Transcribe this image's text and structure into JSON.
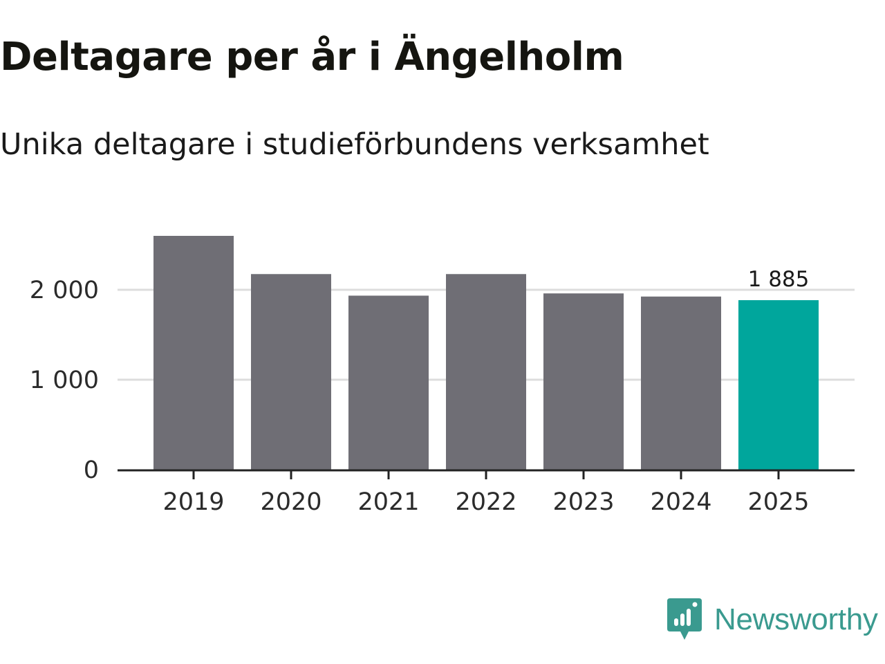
{
  "title": "Deltagare per år i Ängelholm",
  "subtitle": "Unika deltagare i studieförbundens verksamhet",
  "brand": {
    "name": "Newsworthy",
    "icon": "newsworthy-logo-icon",
    "color": "#3a9a8f"
  },
  "colors": {
    "bar": "#6f6e75",
    "highlight": "#00a69c",
    "grid": "#dddddd",
    "axis": "#222222"
  },
  "chart_data": {
    "type": "bar",
    "title": "Deltagare per år i Ängelholm",
    "subtitle": "Unika deltagare i studieförbundens verksamhet",
    "xlabel": "",
    "ylabel": "",
    "categories": [
      "2019",
      "2020",
      "2021",
      "2022",
      "2023",
      "2024",
      "2025"
    ],
    "values": [
      2600,
      2175,
      1935,
      2175,
      1960,
      1925,
      1885
    ],
    "highlight_index": 6,
    "data_labels": [
      {
        "index": 6,
        "text": "1 885"
      }
    ],
    "yticks": [
      {
        "value": 0,
        "label": "0"
      },
      {
        "value": 1000,
        "label": "1 000"
      },
      {
        "value": 2000,
        "label": "2 000"
      }
    ],
    "ylim": [
      0,
      2600
    ],
    "grid": true,
    "legend": "none"
  }
}
